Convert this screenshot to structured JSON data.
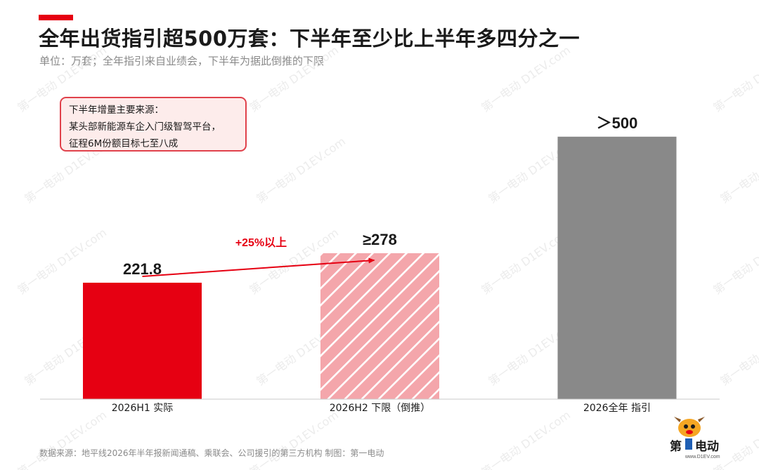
{
  "title": "全年出货指引超500万套：下半年至少比上半年多四分之一",
  "subtitle": "单位：万套；全年指引来自业绩会，下半年为据此倒推的下限",
  "callout": {
    "line1": "下半年增量主要来源：",
    "line2": "某头部新能源车企入门级智驾平台，",
    "line3": "征程6M份额目标七至八成"
  },
  "growth_annotation": "+25%以上",
  "source": "数据来源：地平线2026年半年报新闻通稿、乘联会、公司援引的第三方机构  制图：第一电动",
  "watermark": "第一电动 D1EV.com",
  "logo": {
    "text": "第一电动",
    "subtext": "www.D1EV.com"
  },
  "colors": {
    "actual": "#e60012",
    "lower_bound": "#f4a6ab",
    "guidance": "#898989",
    "accent": "#e60012"
  },
  "chart_data": {
    "type": "bar",
    "categories": [
      "2026H1 实际",
      "2026H2 下限（倒推）",
      "2026全年 指引"
    ],
    "values": [
      221.8,
      278,
      500
    ],
    "value_labels": [
      "221.8",
      "≥278",
      "＞500"
    ],
    "title": "全年出货指引超500万套：下半年至少比上半年多四分之一",
    "ylabel": "",
    "ylim": [
      0,
      600
    ],
    "grid": false,
    "legend": "none"
  }
}
